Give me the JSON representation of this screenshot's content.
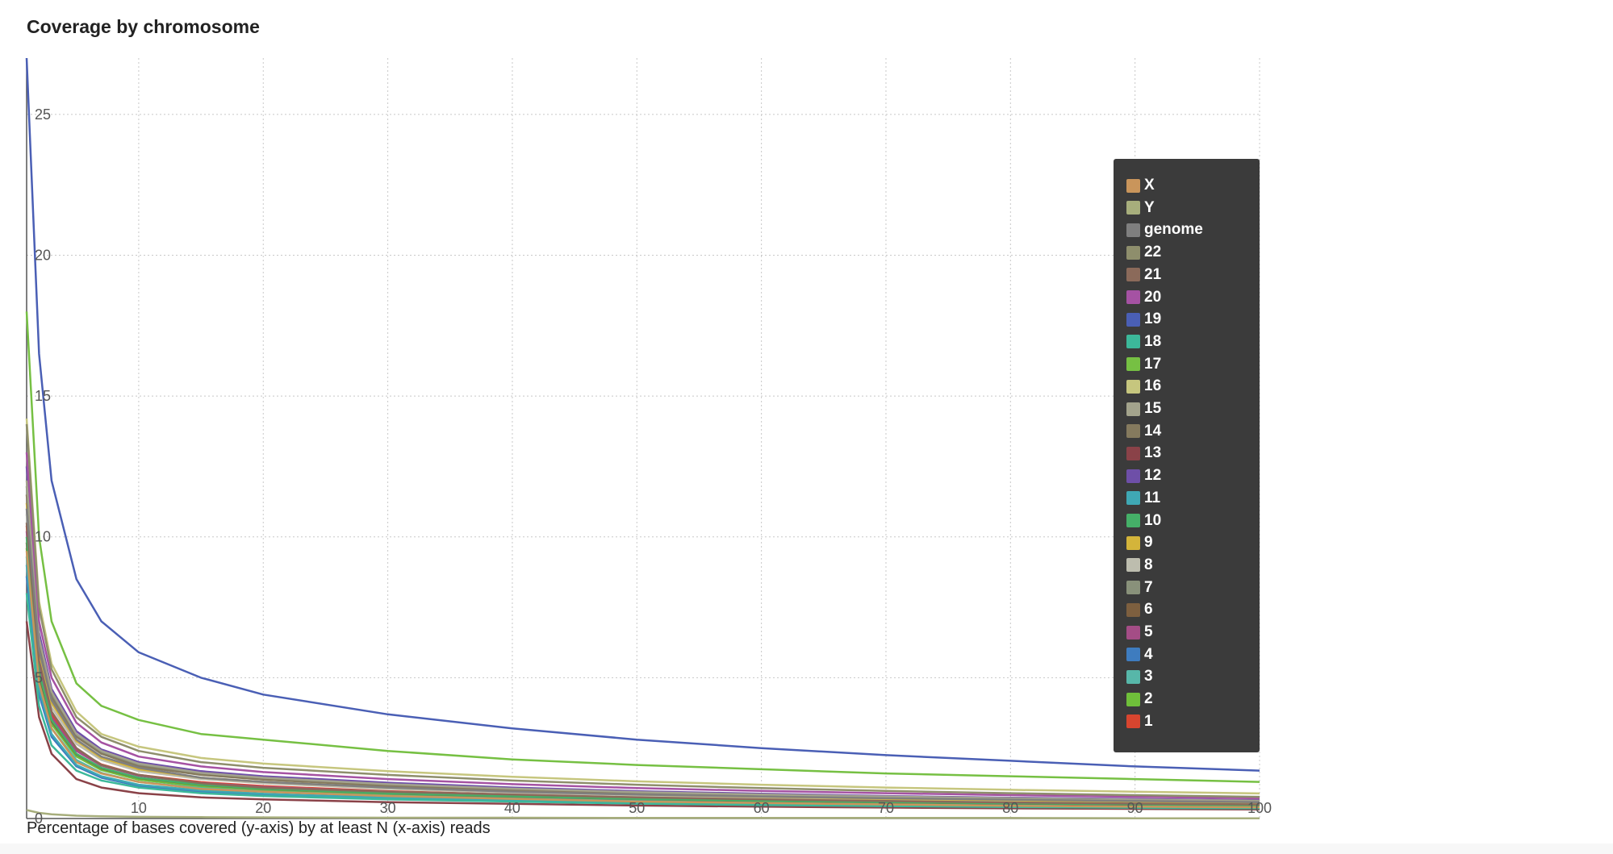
{
  "chart_data": {
    "type": "line",
    "title": "Coverage by chromosome",
    "caption": "Percentage of bases covered (y-axis) by at least N (x-axis) reads",
    "xlim": [
      1,
      100
    ],
    "ylim": [
      0,
      27
    ],
    "x_ticks": [
      "10",
      "20",
      "30",
      "40",
      "50",
      "60",
      "70",
      "80",
      "90",
      "100"
    ],
    "y_ticks": [
      "0",
      "5",
      "10",
      "15",
      "20",
      "25"
    ],
    "grid": true,
    "legend_placement": "right",
    "x": [
      1,
      2,
      3,
      5,
      7,
      10,
      15,
      20,
      30,
      40,
      50,
      60,
      70,
      80,
      90,
      100
    ],
    "series": [
      {
        "name": "X",
        "color": "#c9955b",
        "values": [
          9.5,
          4.8,
          3.2,
          2.0,
          1.6,
          1.3,
          1.05,
          0.95,
          0.8,
          0.7,
          0.6,
          0.55,
          0.5,
          0.45,
          0.42,
          0.4
        ]
      },
      {
        "name": "Y",
        "color": "#a7ae7c",
        "values": [
          0.3,
          0.2,
          0.15,
          0.1,
          0.08,
          0.06,
          0.05,
          0.04,
          0.03,
          0.03,
          0.02,
          0.02,
          0.02,
          0.02,
          0.01,
          0.01
        ]
      },
      {
        "name": "genome",
        "color": "#7f7f7f",
        "values": [
          11.0,
          6.0,
          4.2,
          2.8,
          2.2,
          1.8,
          1.45,
          1.3,
          1.1,
          0.95,
          0.85,
          0.78,
          0.72,
          0.67,
          0.62,
          0.58
        ]
      },
      {
        "name": "22",
        "color": "#8e8e6c",
        "values": [
          14.0,
          7.5,
          5.3,
          3.6,
          2.9,
          2.4,
          2.0,
          1.8,
          1.55,
          1.35,
          1.2,
          1.08,
          0.98,
          0.9,
          0.83,
          0.77
        ]
      },
      {
        "name": "21",
        "color": "#8b6a5a",
        "values": [
          10.5,
          5.6,
          3.8,
          2.5,
          1.9,
          1.55,
          1.25,
          1.1,
          0.95,
          0.85,
          0.75,
          0.68,
          0.62,
          0.57,
          0.53,
          0.5
        ]
      },
      {
        "name": "20",
        "color": "#a552a3",
        "values": [
          13.0,
          7.0,
          5.0,
          3.4,
          2.7,
          2.2,
          1.85,
          1.65,
          1.4,
          1.22,
          1.08,
          0.98,
          0.9,
          0.83,
          0.77,
          0.72
        ]
      },
      {
        "name": "19",
        "color": "#4a5fb5",
        "values": [
          27.0,
          16.5,
          12.0,
          8.5,
          7.0,
          5.9,
          5.0,
          4.4,
          3.7,
          3.2,
          2.8,
          2.5,
          2.25,
          2.05,
          1.85,
          1.7
        ]
      },
      {
        "name": "18",
        "color": "#3cb89a",
        "values": [
          8.0,
          4.0,
          2.6,
          1.7,
          1.35,
          1.1,
          0.9,
          0.8,
          0.68,
          0.6,
          0.53,
          0.48,
          0.44,
          0.41,
          0.38,
          0.36
        ]
      },
      {
        "name": "17",
        "color": "#76c043",
        "values": [
          18.0,
          10.0,
          7.0,
          4.8,
          4.0,
          3.5,
          3.0,
          2.8,
          2.4,
          2.1,
          1.9,
          1.75,
          1.6,
          1.5,
          1.4,
          1.3
        ]
      },
      {
        "name": "16",
        "color": "#c6c67e",
        "values": [
          14.2,
          7.7,
          5.5,
          3.8,
          3.0,
          2.55,
          2.15,
          1.95,
          1.68,
          1.48,
          1.32,
          1.2,
          1.1,
          1.02,
          0.95,
          0.89
        ]
      },
      {
        "name": "15",
        "color": "#a3a38c",
        "values": [
          12.0,
          6.4,
          4.5,
          3.0,
          2.4,
          1.95,
          1.62,
          1.45,
          1.22,
          1.06,
          0.94,
          0.85,
          0.78,
          0.72,
          0.67,
          0.63
        ]
      },
      {
        "name": "14",
        "color": "#857a5e",
        "values": [
          11.5,
          6.1,
          4.3,
          2.9,
          2.3,
          1.85,
          1.55,
          1.38,
          1.16,
          1.0,
          0.89,
          0.81,
          0.74,
          0.68,
          0.63,
          0.59
        ]
      },
      {
        "name": "13",
        "color": "#8a4248",
        "values": [
          7.0,
          3.6,
          2.3,
          1.4,
          1.1,
          0.9,
          0.75,
          0.68,
          0.58,
          0.52,
          0.46,
          0.42,
          0.39,
          0.36,
          0.34,
          0.32
        ]
      },
      {
        "name": "12",
        "color": "#6e4fa8",
        "values": [
          12.5,
          6.6,
          4.6,
          3.1,
          2.45,
          2.0,
          1.68,
          1.5,
          1.27,
          1.1,
          0.97,
          0.88,
          0.8,
          0.74,
          0.69,
          0.65
        ]
      },
      {
        "name": "11",
        "color": "#3fa8b4",
        "values": [
          9.0,
          4.6,
          3.0,
          1.9,
          1.5,
          1.2,
          1.0,
          0.88,
          0.74,
          0.65,
          0.58,
          0.52,
          0.48,
          0.44,
          0.41,
          0.39
        ]
      },
      {
        "name": "10",
        "color": "#45b068",
        "values": [
          10.0,
          5.2,
          3.5,
          2.3,
          1.8,
          1.45,
          1.2,
          1.06,
          0.9,
          0.79,
          0.7,
          0.63,
          0.58,
          0.54,
          0.5,
          0.47
        ]
      },
      {
        "name": "9",
        "color": "#d4b43a",
        "values": [
          11.2,
          5.9,
          4.1,
          2.75,
          2.15,
          1.75,
          1.45,
          1.3,
          1.1,
          0.96,
          0.85,
          0.77,
          0.7,
          0.65,
          0.6,
          0.57
        ]
      },
      {
        "name": "8",
        "color": "#bdbdae",
        "values": [
          10.8,
          5.7,
          3.95,
          2.65,
          2.08,
          1.68,
          1.4,
          1.25,
          1.05,
          0.92,
          0.82,
          0.74,
          0.68,
          0.63,
          0.58,
          0.55
        ]
      },
      {
        "name": "7",
        "color": "#89917a",
        "values": [
          11.8,
          6.3,
          4.4,
          2.95,
          2.33,
          1.9,
          1.58,
          1.41,
          1.19,
          1.03,
          0.91,
          0.83,
          0.76,
          0.7,
          0.65,
          0.61
        ]
      },
      {
        "name": "6",
        "color": "#7d5f3f",
        "values": [
          9.8,
          5.1,
          3.45,
          2.28,
          1.78,
          1.44,
          1.19,
          1.05,
          0.89,
          0.78,
          0.69,
          0.62,
          0.57,
          0.53,
          0.49,
          0.46
        ]
      },
      {
        "name": "5",
        "color": "#a44d86",
        "values": [
          10.2,
          5.35,
          3.6,
          2.4,
          1.88,
          1.52,
          1.26,
          1.12,
          0.95,
          0.83,
          0.73,
          0.66,
          0.6,
          0.56,
          0.52,
          0.49
        ]
      },
      {
        "name": "4",
        "color": "#3e7cbf",
        "values": [
          8.6,
          4.4,
          2.9,
          1.85,
          1.45,
          1.16,
          0.96,
          0.85,
          0.72,
          0.63,
          0.56,
          0.5,
          0.46,
          0.43,
          0.4,
          0.38
        ]
      },
      {
        "name": "3",
        "color": "#57b7a9",
        "values": [
          9.3,
          4.8,
          3.2,
          2.08,
          1.62,
          1.3,
          1.08,
          0.96,
          0.81,
          0.71,
          0.63,
          0.57,
          0.52,
          0.48,
          0.45,
          0.42
        ]
      },
      {
        "name": "2",
        "color": "#6fbf3a",
        "values": [
          9.6,
          5.0,
          3.35,
          2.2,
          1.72,
          1.38,
          1.14,
          1.01,
          0.86,
          0.75,
          0.66,
          0.6,
          0.55,
          0.51,
          0.47,
          0.44
        ]
      },
      {
        "name": "1",
        "color": "#d8452f",
        "values": [
          10.4,
          5.45,
          3.7,
          2.45,
          1.92,
          1.55,
          1.29,
          1.15,
          0.97,
          0.85,
          0.75,
          0.68,
          0.62,
          0.57,
          0.53,
          0.5
        ]
      }
    ]
  }
}
